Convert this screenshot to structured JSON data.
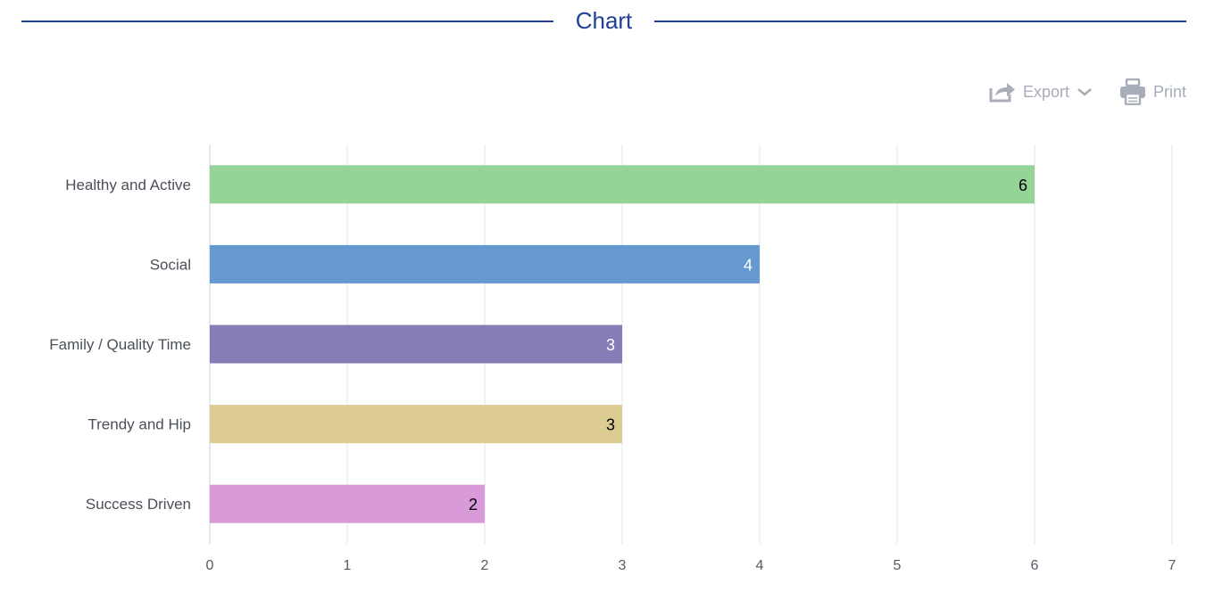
{
  "header": {
    "title": "Chart"
  },
  "toolbar": {
    "export_label": "Export",
    "export_icon": "share-export-icon",
    "export_caret_icon": "chevron-down-icon",
    "print_label": "Print",
    "print_icon": "printer-icon"
  },
  "colors": {
    "accent": "#1f3f99",
    "toolbar_text": "#a7adb9",
    "grid": "#e3e6ec"
  },
  "chart_data": {
    "type": "bar",
    "orientation": "horizontal",
    "categories": [
      "Healthy and Active",
      "Social",
      "Family / Quality Time",
      "Trendy and Hip",
      "Success Driven"
    ],
    "values": [
      6,
      4,
      3,
      3,
      2
    ],
    "bar_colors": [
      "#96d396",
      "#6699d1",
      "#867db6",
      "#ddcc92",
      "#d89ad8"
    ],
    "data_label_colors": [
      "#000000",
      "#ffffff",
      "#ffffff",
      "#000000",
      "#000000"
    ],
    "xlim": [
      0,
      7
    ],
    "x_ticks": [
      0,
      1,
      2,
      3,
      4,
      5,
      6,
      7
    ],
    "grid": true,
    "title": "",
    "xlabel": "",
    "ylabel": ""
  }
}
